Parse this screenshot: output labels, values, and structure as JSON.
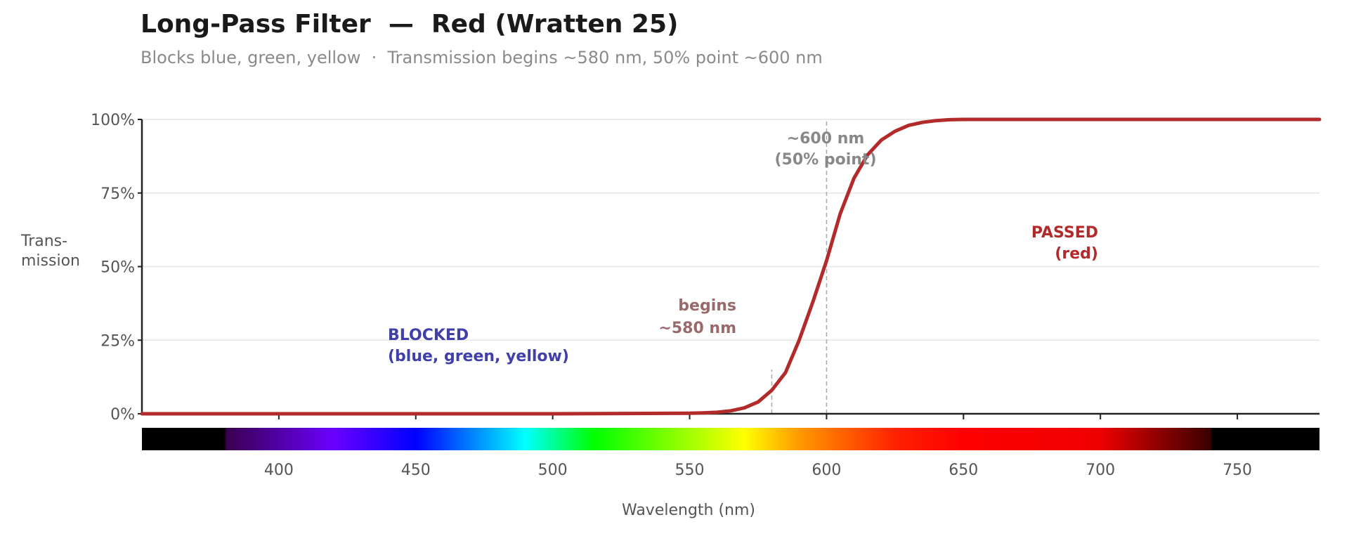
{
  "chart_data": {
    "type": "line",
    "title": "Long-Pass Filter  —  Red (Wratten 25)",
    "subtitle": "Blocks blue, green, yellow  ·  Transmission begins ~580 nm, 50% point ~600 nm",
    "xlabel": "Wavelength (nm)",
    "ylabel": [
      "Trans-",
      "mission"
    ],
    "xlim": [
      350,
      780
    ],
    "ylim": [
      0,
      100
    ],
    "x_ticks": [
      400,
      450,
      500,
      550,
      600,
      650,
      700,
      750
    ],
    "y_ticks": [
      0,
      25,
      50,
      75,
      100
    ],
    "y_tick_labels": [
      "0%",
      "25%",
      "50%",
      "75%",
      "100%"
    ],
    "grid": "horizontal",
    "line_color": "#b22a2a",
    "series": [
      {
        "x": [
          350,
          400,
          450,
          500,
          550,
          555,
          560,
          565,
          570,
          575,
          580,
          585,
          590,
          595,
          600,
          605,
          610,
          615,
          620,
          625,
          630,
          635,
          640,
          645,
          650,
          700,
          780
        ],
        "y": [
          0,
          0,
          0,
          0,
          0.2,
          0.3,
          0.5,
          1,
          2,
          4,
          8,
          14,
          25,
          38,
          52,
          68,
          80,
          88,
          93,
          96,
          98,
          99,
          99.6,
          99.9,
          100,
          100,
          100
        ]
      }
    ],
    "reference_lines": [
      {
        "x": 600,
        "y_to": 100
      },
      {
        "x": 580,
        "y_to": 15
      }
    ],
    "annotations": [
      {
        "id": "blocked",
        "lines": [
          "BLOCKED",
          "(blue, green, yellow)"
        ],
        "color": "#4040a8"
      },
      {
        "id": "begins",
        "lines": [
          "begins",
          "~580 nm"
        ],
        "color": "#9a6a6a"
      },
      {
        "id": "fifty",
        "lines": [
          "~600 nm",
          "(50% point)"
        ],
        "color": "#888888"
      },
      {
        "id": "passed",
        "lines": [
          "PASSED",
          "(red)"
        ],
        "color": "#b22a2a"
      }
    ],
    "spectrum_bar": {
      "range": [
        350,
        780
      ],
      "stops": [
        {
          "nm": 380,
          "color": "#000000"
        },
        {
          "nm": 381,
          "color": "#3a0050"
        },
        {
          "nm": 420,
          "color": "#6a00ff"
        },
        {
          "nm": 450,
          "color": "#0000ff"
        },
        {
          "nm": 490,
          "color": "#00ffff"
        },
        {
          "nm": 515,
          "color": "#00ff00"
        },
        {
          "nm": 570,
          "color": "#ffff00"
        },
        {
          "nm": 590,
          "color": "#ff9900"
        },
        {
          "nm": 625,
          "color": "#ff2200"
        },
        {
          "nm": 650,
          "color": "#ff0000"
        },
        {
          "nm": 700,
          "color": "#ee0000"
        },
        {
          "nm": 740,
          "color": "#3a0000"
        },
        {
          "nm": 741,
          "color": "#000000"
        }
      ]
    }
  }
}
